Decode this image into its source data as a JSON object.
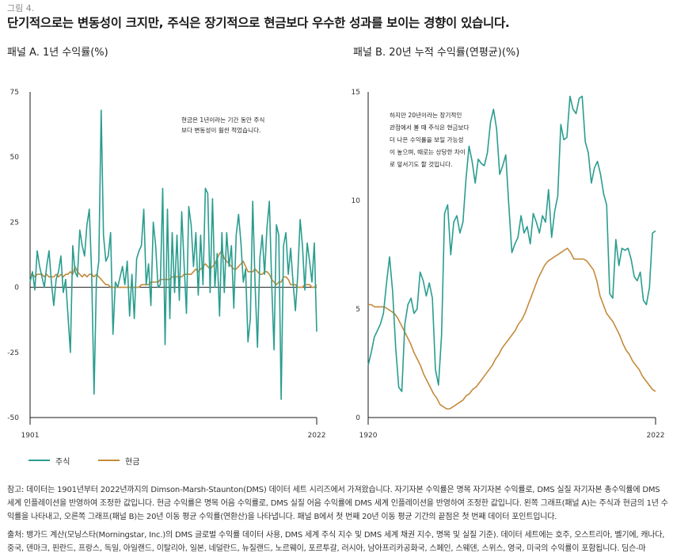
{
  "figure_label": "그림 4.",
  "figure_title": "단기적으로는 변동성이 크지만, 주식은 장기적으로 현금보다 우수한 성과를 보이는 경향이 있습니다.",
  "panel_a_title": "패널 A. 1년 수익률(%)",
  "panel_b_title": "패널 B. 20년 누적 수익률(연평균)(%)",
  "legend": {
    "stocks": "주식",
    "cash": "현금"
  },
  "colors": {
    "stocks": "#2a9d8f",
    "cash": "#c48a3a",
    "axis": "#1a1a1a"
  },
  "notes": "참고: 데이터는 1901년부터 2022년까지의 Dimson-Marsh-Staunton(DMS) 데이터 세트 시리즈에서 가져왔습니다. 자기자본 수익률은 명목 자기자본 수익률로, DMS 실질 자기자본 총수익률에 DMS 세계 인플레이션을 반영하여 조정한 값입니다. 현금 수익률은 명목 어음 수익률로, DMS 실질 어음 수익률에 DMS 세계 인플레이션을 반영하여 조정한 값입니다. 왼쪽 그래프(패널 A)는 주식과 현금의 1년 수익률을 나타내고, 오른쪽 그래프(패널 B)는 20년 이동 평균 수익률(연환산)을 나타냅니다. 패널 B에서 첫 번째 20년 이동 평균 기간의 끝점은 첫 번째 데이터 포인트입니다.",
  "source": "출처: 뱅가드 계산(모닝스타(Morningstar, Inc.)의 DMS 글로벌 수익률 데이터 사용, DMS 세계 주식 지수 및 DMS 세계 채권 지수, 명목 및 실질 기준). 데이터 세트에는 호주, 오스트리아, 벨기에, 캐나다, 중국, 덴마크, 핀란드, 프랑스, 독일, 아일랜드, 이탈리아, 일본, 네덜란드, 뉴질랜드, 노르웨이, 포르투갈, 러시아, 남아프리카공화국, 스페인, 스웨덴, 스위스, 영국, 미국의 수익률이 포함됩니다. 딤슨-마",
  "chart_data": [
    {
      "type": "line",
      "title": "패널 A. 1년 수익률(%)",
      "xlabel": "",
      "ylabel": "",
      "x_ticks": [
        "1901",
        "2022"
      ],
      "y_ticks": [
        "75",
        "50",
        "25",
        "0",
        "-25",
        "-50"
      ],
      "ylim": [
        -50,
        75
      ],
      "annotation": [
        "현금은 1년이라는 기간 동안 주식",
        "보다 변동성이 훨씬 적었습니다."
      ],
      "grid": false,
      "x_start": 1901,
      "x_end": 2022,
      "series": [
        {
          "name": "주식",
          "color": "#2a9d8f",
          "values": [
            2,
            6,
            -1,
            14,
            8,
            4,
            0,
            8,
            14,
            2,
            -7,
            3,
            6,
            12,
            -2,
            3,
            -11,
            -25,
            16,
            6,
            4,
            22,
            16,
            12,
            24,
            30,
            5,
            -41,
            3,
            10,
            68,
            20,
            10,
            12,
            21,
            -18,
            2,
            0,
            4,
            8,
            1,
            10,
            -11,
            5,
            -12,
            11,
            14,
            16,
            30,
            1,
            9,
            -7,
            25,
            16,
            0,
            1,
            38,
            -22,
            30,
            -12,
            21,
            -2,
            20,
            -5,
            29,
            9,
            -10,
            31,
            24,
            8,
            21,
            -3,
            20,
            1,
            38,
            36,
            -2,
            34,
            0,
            13,
            -11,
            21,
            -2,
            21,
            8,
            16,
            -8,
            20,
            28,
            17,
            2,
            7,
            -21,
            -12,
            33,
            1,
            -23,
            11,
            20,
            5,
            23,
            33,
            1,
            -24,
            24,
            20,
            -43,
            16,
            21,
            5,
            15,
            2,
            -9,
            5,
            26,
            16,
            -1,
            17,
            10,
            2,
            17,
            -17
          ]
        },
        {
          "name": "현금",
          "color": "#c48a3a",
          "values": [
            5,
            5,
            4,
            5,
            5,
            5,
            4,
            5,
            4,
            4,
            4,
            5,
            4,
            5,
            4,
            5,
            5,
            6,
            5,
            8,
            6,
            5,
            4,
            5,
            4,
            5,
            5,
            4,
            5,
            4,
            3,
            2,
            1,
            1,
            0,
            0,
            0,
            0,
            0,
            0,
            0,
            0,
            0,
            0,
            0,
            0,
            0,
            1,
            1,
            1,
            1,
            2,
            2,
            2,
            2,
            3,
            3,
            3,
            3,
            3,
            4,
            4,
            4,
            4,
            4,
            5,
            5,
            5,
            5,
            6,
            7,
            6,
            7,
            8,
            9,
            8,
            7,
            8,
            9,
            11,
            13,
            14,
            11,
            10,
            9,
            8,
            7,
            7,
            8,
            9,
            10,
            8,
            6,
            6,
            6,
            7,
            6,
            5,
            5,
            6,
            6,
            5,
            3,
            2,
            1,
            2,
            2,
            4,
            4,
            3,
            1,
            1,
            1,
            0,
            0,
            0,
            1,
            1,
            1,
            0,
            0,
            1
          ]
        }
      ]
    },
    {
      "type": "line",
      "title": "패널 B. 20년 누적 수익률(연평균)(%)",
      "xlabel": "",
      "ylabel": "",
      "x_ticks": [
        "1920",
        "2022"
      ],
      "y_ticks": [
        "15",
        "10",
        "5",
        "0"
      ],
      "ylim": [
        0,
        15
      ],
      "annotation": [
        "하지만 20년이라는 장기적인",
        "관점에서 볼 때 주식은 현금보다",
        "더 나은 수익률을 보일 가능성",
        "이 높으며, 때로는 상당한 차이",
        "로 앞서기도 할 것입니다."
      ],
      "grid": false,
      "x_start": 1920,
      "x_end": 2022,
      "series": [
        {
          "name": "주식",
          "color": "#2a9d8f",
          "values": [
            2.4,
            3.0,
            3.7,
            4.0,
            4.3,
            4.8,
            6.2,
            7.4,
            5.8,
            3.2,
            1.4,
            1.2,
            4.3,
            5.2,
            5.5,
            4.8,
            5.0,
            6.7,
            6.3,
            5.6,
            6.2,
            5.5,
            2.2,
            1.5,
            3.8,
            9.4,
            9.8,
            7.5,
            9.0,
            9.3,
            8.5,
            9.0,
            11.0,
            12.5,
            11.8,
            10.8,
            11.9,
            11.7,
            11.6,
            12.2,
            13.6,
            14.2,
            13.3,
            11.2,
            11.6,
            12.1,
            9.8,
            7.6,
            8.0,
            8.3,
            9.3,
            8.5,
            8.8,
            8.0,
            9.4,
            9.0,
            8.5,
            9.3,
            9.0,
            10.5,
            8.3,
            9.5,
            10.2,
            13.5,
            12.8,
            12.9,
            14.8,
            14.2,
            14.0,
            14.7,
            14.8,
            12.7,
            12.2,
            10.8,
            11.5,
            11.8,
            11.2,
            10.3,
            9.8,
            5.7,
            5.5,
            8.2,
            7.0,
            7.8,
            7.7,
            7.8,
            7.3,
            6.5,
            6.3,
            6.7,
            5.4,
            5.2,
            6.0,
            8.5,
            8.6
          ]
        },
        {
          "name": "현금",
          "color": "#c48a3a",
          "values": [
            5.2,
            5.2,
            5.1,
            5.1,
            5.1,
            5.1,
            5.0,
            4.9,
            4.8,
            4.6,
            4.3,
            4.0,
            3.7,
            3.4,
            3.0,
            2.7,
            2.4,
            2.0,
            1.7,
            1.4,
            1.1,
            0.9,
            0.6,
            0.5,
            0.4,
            0.4,
            0.5,
            0.6,
            0.7,
            0.8,
            1.0,
            1.1,
            1.3,
            1.4,
            1.6,
            1.8,
            2.0,
            2.2,
            2.4,
            2.7,
            2.9,
            3.2,
            3.4,
            3.6,
            3.8,
            4.0,
            4.3,
            4.5,
            4.8,
            5.2,
            5.6,
            6.0,
            6.4,
            6.7,
            7.0,
            7.2,
            7.3,
            7.4,
            7.5,
            7.6,
            7.7,
            7.8,
            7.6,
            7.3,
            7.3,
            7.3,
            7.3,
            7.2,
            7.0,
            6.8,
            6.3,
            5.6,
            5.2,
            4.8,
            4.6,
            4.4,
            4.1,
            3.8,
            3.4,
            3.1,
            2.9,
            2.6,
            2.4,
            2.2,
            1.9,
            1.7,
            1.5,
            1.3,
            1.2
          ]
        }
      ]
    }
  ]
}
